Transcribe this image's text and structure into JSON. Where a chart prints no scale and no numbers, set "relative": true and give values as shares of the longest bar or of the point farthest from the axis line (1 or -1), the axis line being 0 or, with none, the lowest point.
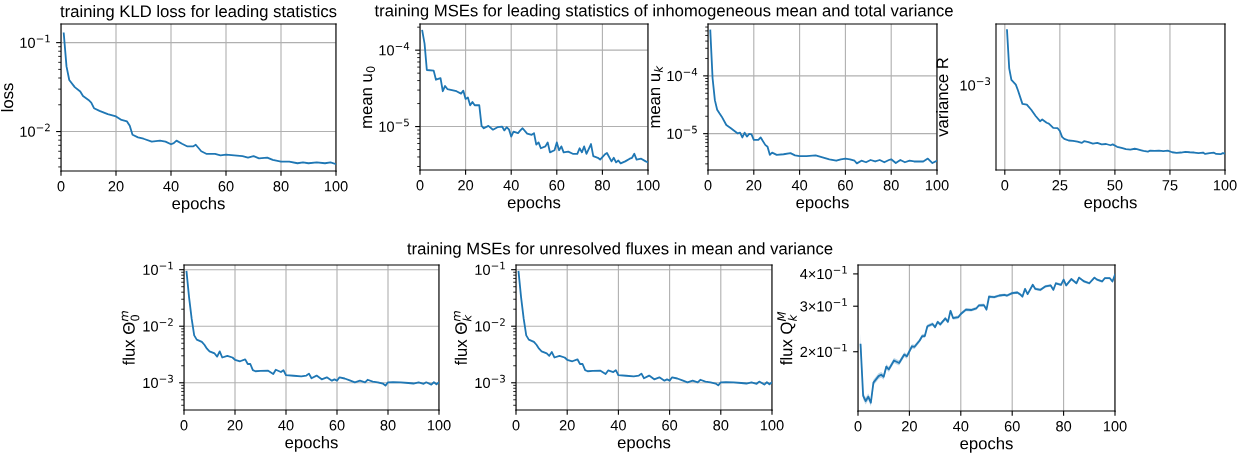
{
  "chart_data": [
    {
      "type": "line",
      "title": "training KLD loss for leading statistics",
      "xlabel": "epochs",
      "ylabel": "loss",
      "log": true,
      "grid": true,
      "xlim": [
        0,
        100
      ],
      "xticks": [
        0,
        20,
        40,
        60,
        80,
        100
      ],
      "ylim": [
        0.0036,
        0.162
      ],
      "yticks": [
        {
          "value": 0.1,
          "label": "10$^{−1}$"
        },
        {
          "value": 0.01,
          "label": "10$^{−2}$"
        }
      ],
      "x": [
        1,
        2,
        3,
        5,
        7,
        8,
        10,
        11,
        12,
        14,
        17,
        20,
        22,
        24,
        25,
        26,
        28,
        30,
        33,
        36,
        38,
        40,
        41,
        42,
        44,
        46,
        48,
        49,
        51,
        53,
        56,
        58,
        60,
        63,
        66,
        68,
        70,
        72,
        75,
        77,
        80,
        83,
        86,
        88,
        90,
        93,
        96,
        98,
        100
      ],
      "series": [
        {
          "color": "#1f77b4",
          "values": [
            0.127,
            0.054,
            0.038,
            0.0316,
            0.0282,
            0.0251,
            0.0227,
            0.0212,
            0.0183,
            0.0171,
            0.0157,
            0.0148,
            0.0135,
            0.013,
            0.0116,
            0.0092,
            0.0086,
            0.0083,
            0.0077,
            0.0079,
            0.0077,
            0.0072,
            0.0074,
            0.0079,
            0.0073,
            0.0068,
            0.0068,
            0.0071,
            0.006,
            0.0056,
            0.0056,
            0.0054,
            0.0055,
            0.0054,
            0.0053,
            0.0051,
            0.0053,
            0.005,
            0.0051,
            0.0048,
            0.0046,
            0.0046,
            0.0044,
            0.0045,
            0.0044,
            0.0045,
            0.0044,
            0.0045,
            0.0043
          ]
        }
      ]
    },
    {
      "type": "line",
      "title": "training MSEs for leading statistics of inhomogeneous mean and total variance",
      "xlabel": "epochs",
      "ylabel": "mean u$_{0}$",
      "log": true,
      "grid": true,
      "xlim": [
        0,
        100
      ],
      "xticks": [
        0,
        20,
        40,
        60,
        80,
        100
      ],
      "ylim": [
        2.7e-06,
        0.00022
      ],
      "yticks": [
        {
          "value": 0.0001,
          "label": "10$^{−4}$"
        },
        {
          "value": 1e-05,
          "label": "10$^{−5}$"
        }
      ],
      "x": [
        1,
        2,
        3,
        6,
        7,
        8,
        9,
        10,
        11,
        12,
        14,
        16,
        18,
        19,
        20,
        21,
        22,
        23,
        24,
        26,
        27,
        28,
        30,
        32,
        34,
        36,
        37,
        38,
        39,
        40,
        41,
        43,
        44,
        45,
        47,
        49,
        50,
        51,
        52,
        53,
        55,
        56,
        57,
        59,
        60,
        61,
        62,
        63,
        65,
        67,
        69,
        70,
        71,
        72,
        73,
        75,
        76,
        78,
        79,
        81,
        82,
        84,
        85,
        86,
        87,
        88,
        90,
        92,
        93,
        94,
        95,
        97,
        99,
        100
      ],
      "series": [
        {
          "color": "#1f77b4",
          "values": [
            0.000179,
            0.000122,
            5.5e-05,
            5.4e-05,
            4.1e-05,
            4.2e-05,
            4.3e-05,
            2.9e-05,
            3.4e-05,
            3.1e-05,
            3e-05,
            2.9e-05,
            2.7e-05,
            2.95e-05,
            2.3e-05,
            2.4e-05,
            1.9e-05,
            2.1e-05,
            1.9e-05,
            1.9e-05,
            1.02e-05,
            9.5e-06,
            1.02e-05,
            9.1e-06,
            9.8e-06,
            1e-05,
            8.9e-06,
            9.8e-06,
            9.2e-06,
            7.4e-06,
            8.6e-06,
            8.2e-06,
            8.9e-06,
            9.5e-06,
            8.1e-06,
            7.8e-06,
            8.2e-06,
            5.8e-06,
            6.2e-06,
            5.2e-06,
            5.5e-06,
            6.2e-06,
            4.6e-06,
            4.9e-06,
            6.2e-06,
            4.9e-06,
            5.5e-06,
            4.6e-06,
            4.7e-06,
            4.4e-06,
            4.4e-06,
            5.2e-06,
            4.6e-06,
            5.5e-06,
            4.4e-06,
            5.9e-06,
            4.1e-06,
            3.9e-06,
            3.7e-06,
            4.3e-06,
            4.5e-06,
            3.5e-06,
            3.9e-06,
            3.4e-06,
            3.6e-06,
            3.3e-06,
            3.5e-06,
            3.8e-06,
            3.9e-06,
            4.4e-06,
            3.7e-06,
            3.8e-06,
            3.5e-06,
            3.4e-06
          ]
        }
      ]
    },
    {
      "type": "line",
      "xlabel": "epochs",
      "ylabel": "mean u$_{k}$",
      "log": true,
      "grid": true,
      "xlim": [
        0,
        100
      ],
      "xticks": [
        0,
        20,
        40,
        60,
        80,
        100
      ],
      "ylim": [
        2.35e-06,
        0.00079
      ],
      "yticks": [
        {
          "value": 0.0001,
          "label": "10$^{−4}$"
        },
        {
          "value": 1e-05,
          "label": "10$^{−5}$"
        }
      ],
      "x": [
        1,
        2,
        3,
        4,
        5,
        6,
        8,
        10,
        12,
        13,
        14,
        15,
        16,
        17,
        18,
        19,
        20,
        22,
        23,
        25,
        26,
        27,
        28,
        30,
        33,
        36,
        38,
        40,
        43,
        47,
        50,
        53,
        56,
        58,
        60,
        62,
        64,
        65,
        67,
        69,
        71,
        73,
        75,
        77,
        79,
        80,
        82,
        84,
        86,
        88,
        90,
        92,
        94,
        96,
        98,
        100
      ],
      "series": [
        {
          "color": "#1f77b4",
          "values": [
            0.00061,
            9.1e-05,
            3.8e-05,
            2.6e-05,
            2.25e-05,
            1.97e-05,
            1.41e-05,
            1.24e-05,
            1.08e-05,
            1.01e-05,
            1.04e-05,
            8.6e-06,
            1.04e-05,
            8.9e-06,
            9.9e-06,
            9.7e-06,
            7.8e-06,
            7.8e-06,
            8.6e-06,
            6.4e-06,
            5.95e-06,
            4.3e-06,
            4.7e-06,
            4.3e-06,
            4.4e-06,
            4.6e-06,
            4.2e-06,
            4.1e-06,
            4.1e-06,
            4.2e-06,
            3.9e-06,
            3.6e-06,
            3.4e-06,
            3.6e-06,
            3.7e-06,
            3.6e-06,
            3.4e-06,
            3.06e-06,
            3.4e-06,
            3.2e-06,
            3.5e-06,
            3.3e-06,
            3.5e-06,
            3.2e-06,
            3.5e-06,
            3.6e-06,
            3.1e-06,
            3.5e-06,
            3.2e-06,
            3.4e-06,
            3.3e-06,
            3.3e-06,
            3.3e-06,
            3.7e-06,
            3.1e-06,
            3.4e-06
          ]
        }
      ]
    },
    {
      "type": "line",
      "xlabel": "epochs",
      "ylabel": "variance R",
      "relative": true,
      "grid": true,
      "xlim": [
        -4,
        100
      ],
      "xticks": [
        0,
        25,
        50,
        75,
        100
      ],
      "annotations": [
        "10$^{−3}$"
      ],
      "x": [
        1,
        2,
        3,
        5,
        6,
        8,
        10,
        12,
        14,
        16,
        17,
        19,
        20,
        22,
        24,
        25,
        26,
        27,
        29,
        31,
        33,
        35,
        36,
        38,
        40,
        42,
        44,
        46,
        48,
        49,
        51,
        53,
        55,
        57,
        59,
        60,
        62,
        63,
        65,
        66,
        68,
        70,
        72,
        74,
        76,
        78,
        80,
        82,
        84,
        86,
        88,
        90,
        91,
        93,
        95,
        96,
        98,
        99,
        100
      ],
      "series": [
        {
          "color": "#1f77b4",
          "values": [
            1,
            0.727,
            0.645,
            0.611,
            0.569,
            0.473,
            0.468,
            0.431,
            0.386,
            0.349,
            0.361,
            0.338,
            0.332,
            0.301,
            0.299,
            0.279,
            0.237,
            0.223,
            0.211,
            0.208,
            0.203,
            0.194,
            0.206,
            0.2,
            0.189,
            0.194,
            0.183,
            0.186,
            0.177,
            0.183,
            0.166,
            0.158,
            0.149,
            0.146,
            0.152,
            0.149,
            0.141,
            0.137,
            0.132,
            0.138,
            0.137,
            0.138,
            0.135,
            0.138,
            0.127,
            0.123,
            0.125,
            0.13,
            0.127,
            0.125,
            0.121,
            0.125,
            0.115,
            0.121,
            0.124,
            0.115,
            0.113,
            0.121,
            0.118
          ]
        }
      ]
    },
    {
      "type": "line",
      "xlabel": "epochs",
      "ylabel": "flux Θ$^{m}$$_{0}$",
      "log": true,
      "grid": true,
      "xlim": [
        0,
        100
      ],
      "xticks": [
        0,
        20,
        40,
        60,
        80,
        100
      ],
      "ylim": [
        0.00033,
        0.121
      ],
      "yticks": [
        {
          "value": 0.1,
          "label": "10$^{−1}$"
        },
        {
          "value": 0.01,
          "label": "10$^{−2}$"
        },
        {
          "value": 0.001,
          "label": "10$^{−3}$"
        }
      ],
      "x": [
        1,
        2,
        3,
        4,
        5,
        7,
        8,
        9,
        10,
        12,
        13,
        14,
        15,
        17,
        19,
        20,
        22,
        24,
        25,
        26,
        27,
        28,
        30,
        33,
        35,
        36,
        38,
        39,
        40,
        43,
        46,
        48,
        49,
        50,
        52,
        54,
        56,
        58,
        59,
        60,
        61,
        63,
        65,
        67,
        69,
        71,
        72,
        74,
        76,
        78,
        79,
        80,
        82,
        85,
        88,
        90,
        92,
        94,
        95,
        97,
        98,
        99,
        100
      ],
      "series": [
        {
          "color": "#1f77b4",
          "values": [
            0.092,
            0.032,
            0.0136,
            0.0069,
            0.0058,
            0.0053,
            0.0047,
            0.004,
            0.0036,
            0.0033,
            0.0029,
            0.0036,
            0.0028,
            0.003,
            0.0028,
            0.00255,
            0.0024,
            0.0026,
            0.00215,
            0.00215,
            0.00167,
            0.0016,
            0.00162,
            0.00163,
            0.00143,
            0.0017,
            0.00155,
            0.00167,
            0.00136,
            0.00133,
            0.0013,
            0.00134,
            0.00145,
            0.0012,
            0.00134,
            0.00115,
            0.00125,
            0.00109,
            0.00115,
            0.00109,
            0.00125,
            0.00119,
            0.0011,
            0.00102,
            0.00109,
            0.00102,
            0.00113,
            0.00105,
            0.00102,
            0.00097,
            0.00089,
            0.00102,
            0.00103,
            0.00102,
            0.00099,
            0.00097,
            0.00102,
            0.00096,
            0.00102,
            0.00093,
            0.00102,
            0.00094,
            0.00102
          ]
        }
      ]
    },
    {
      "type": "line",
      "title": "training MSEs for unresolved fluxes in mean and variance",
      "xlabel": "epochs",
      "ylabel": "flux Θ$^{m}$$_{k}$",
      "log": true,
      "grid": true,
      "xlim": [
        0,
        100
      ],
      "xticks": [
        0,
        20,
        40,
        60,
        80,
        100
      ],
      "ylim": [
        0.00033,
        0.121
      ],
      "yticks": [
        {
          "value": 0.1,
          "label": "10$^{−1}$"
        },
        {
          "value": 0.01,
          "label": "10$^{−2}$"
        },
        {
          "value": 0.001,
          "label": "10$^{−3}$"
        }
      ],
      "x": [
        1,
        2,
        3,
        4,
        5,
        7,
        8,
        9,
        10,
        12,
        13,
        14,
        15,
        17,
        19,
        20,
        22,
        24,
        25,
        26,
        27,
        28,
        30,
        33,
        35,
        36,
        38,
        39,
        40,
        43,
        46,
        48,
        49,
        50,
        52,
        54,
        56,
        58,
        59,
        60,
        61,
        63,
        65,
        67,
        69,
        71,
        72,
        74,
        76,
        78,
        79,
        80,
        82,
        85,
        88,
        90,
        92,
        94,
        95,
        97,
        98,
        99,
        100
      ],
      "series": [
        {
          "color": "#1f77b4",
          "values": [
            0.092,
            0.032,
            0.0136,
            0.0069,
            0.0058,
            0.0053,
            0.0047,
            0.004,
            0.0036,
            0.0033,
            0.003,
            0.0035,
            0.0028,
            0.003,
            0.0028,
            0.00255,
            0.0024,
            0.0026,
            0.00215,
            0.00215,
            0.00167,
            0.0016,
            0.00162,
            0.00163,
            0.00143,
            0.00165,
            0.00155,
            0.00167,
            0.00136,
            0.00133,
            0.0013,
            0.00134,
            0.00145,
            0.0012,
            0.00134,
            0.00115,
            0.00125,
            0.00109,
            0.00115,
            0.00109,
            0.00125,
            0.00119,
            0.0011,
            0.00102,
            0.00109,
            0.00102,
            0.00113,
            0.00105,
            0.00102,
            0.00097,
            0.0009,
            0.00102,
            0.00103,
            0.00102,
            0.00099,
            0.00097,
            0.00102,
            0.00096,
            0.00105,
            0.00093,
            0.00102,
            0.00094,
            0.00102
          ]
        }
      ]
    },
    {
      "type": "line",
      "xlabel": "epochs",
      "ylabel": "flux Q$^{M}$$_{k}$",
      "log": true,
      "grid": "x",
      "xlim": [
        0,
        100
      ],
      "xticks": [
        0,
        20,
        40,
        60,
        80,
        100
      ],
      "ylim": [
        0.118,
        0.433
      ],
      "yticks": [
        {
          "value": 0.2,
          "label": "2×10$^{−1}$"
        },
        {
          "value": 0.3,
          "label": "3×10$^{−1}$"
        },
        {
          "value": 0.4,
          "label": "4×10$^{−1}$"
        }
      ],
      "x": [
        1,
        2,
        3,
        4,
        5,
        6,
        8,
        9,
        10,
        11,
        12,
        14,
        16,
        18,
        19,
        21,
        22,
        24,
        25,
        26,
        27,
        29,
        30,
        31,
        32,
        34,
        35,
        36,
        37,
        39,
        40,
        42,
        44,
        46,
        47,
        49,
        50,
        51,
        53,
        55,
        57,
        58,
        60,
        62,
        63,
        64,
        65,
        66,
        68,
        69,
        71,
        73,
        75,
        76,
        77,
        79,
        80,
        81,
        83,
        85,
        86,
        88,
        90,
        92,
        93,
        95,
        96,
        98,
        99,
        100
      ],
      "series": [
        {
          "color": "#1f77b4",
          "values": [
            0.213,
            0.135,
            0.129,
            0.134,
            0.127,
            0.152,
            0.161,
            0.163,
            0.16,
            0.175,
            0.171,
            0.185,
            0.181,
            0.195,
            0.192,
            0.21,
            0.209,
            0.221,
            0.23,
            0.23,
            0.251,
            0.256,
            0.249,
            0.261,
            0.255,
            0.269,
            0.261,
            0.288,
            0.27,
            0.272,
            0.28,
            0.291,
            0.29,
            0.294,
            0.302,
            0.303,
            0.291,
            0.327,
            0.325,
            0.33,
            0.332,
            0.33,
            0.337,
            0.339,
            0.334,
            0.327,
            0.35,
            0.334,
            0.363,
            0.35,
            0.347,
            0.358,
            0.361,
            0.347,
            0.368,
            0.363,
            0.38,
            0.361,
            0.382,
            0.368,
            0.387,
            0.374,
            0.368,
            0.387,
            0.38,
            0.374,
            0.385,
            0.385,
            0.374,
            0.397
          ],
          "lower": [
            0.2,
            0.131,
            0.125,
            0.13,
            0.123,
            0.148,
            0.157,
            0.159,
            0.156,
            0.171,
            0.167,
            0.181,
            0.177,
            0.191,
            0.188,
            0.206,
            0.205,
            0.217,
            0.226,
            0.226,
            0.247,
            0.252,
            0.245,
            0.257,
            0.251,
            0.265,
            0.257,
            0.284,
            0.266,
            0.268,
            0.276,
            0.287,
            0.286,
            0.29,
            0.298,
            0.299,
            0.287,
            0.323,
            0.321,
            0.326,
            0.328,
            0.326,
            0.333,
            0.335,
            0.33,
            0.323,
            0.346,
            0.33,
            0.359,
            0.346,
            0.343,
            0.354,
            0.357,
            0.343,
            0.364,
            0.359,
            0.376,
            0.357,
            0.378,
            0.364,
            0.383,
            0.37,
            0.364,
            0.383,
            0.376,
            0.37,
            0.381,
            0.381,
            0.37,
            0.393
          ],
          "upper": [
            0.235,
            0.139,
            0.133,
            0.138,
            0.131,
            0.156,
            0.165,
            0.167,
            0.164,
            0.179,
            0.175,
            0.189,
            0.185,
            0.199,
            0.196,
            0.214,
            0.213,
            0.225,
            0.234,
            0.234,
            0.255,
            0.26,
            0.253,
            0.265,
            0.259,
            0.273,
            0.265,
            0.292,
            0.274,
            0.276,
            0.284,
            0.295,
            0.294,
            0.298,
            0.306,
            0.307,
            0.295,
            0.331,
            0.329,
            0.334,
            0.336,
            0.334,
            0.341,
            0.343,
            0.338,
            0.331,
            0.354,
            0.338,
            0.367,
            0.354,
            0.351,
            0.362,
            0.365,
            0.351,
            0.372,
            0.367,
            0.384,
            0.365,
            0.386,
            0.372,
            0.391,
            0.378,
            0.372,
            0.391,
            0.384,
            0.378,
            0.389,
            0.389,
            0.378,
            0.401
          ]
        }
      ]
    }
  ]
}
